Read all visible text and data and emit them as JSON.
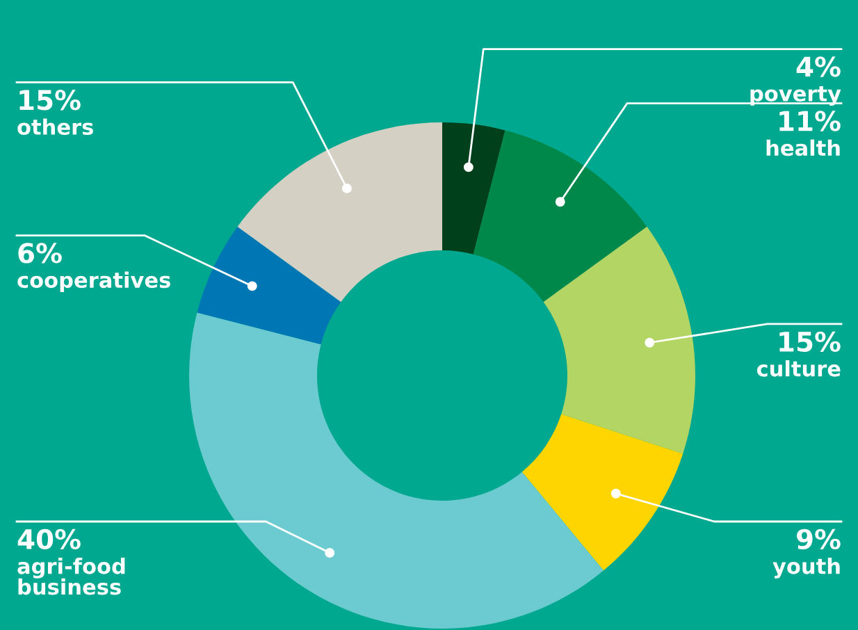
{
  "chart_data": {
    "type": "donut",
    "categories": [
      "poverty",
      "health",
      "culture",
      "youth",
      "agri-food\nbusiness",
      "cooperatives",
      "others"
    ],
    "values": [
      4,
      11,
      15,
      9,
      40,
      6,
      15
    ],
    "colors": [
      "#00401a",
      "#00874a",
      "#b2d564",
      "#ffd500",
      "#6bcbd0",
      "#0077b5",
      "#d4d1c4"
    ],
    "value_labels": [
      "4%",
      "11%",
      "15%",
      "9%",
      "40%",
      "6%",
      "15%"
    ]
  }
}
